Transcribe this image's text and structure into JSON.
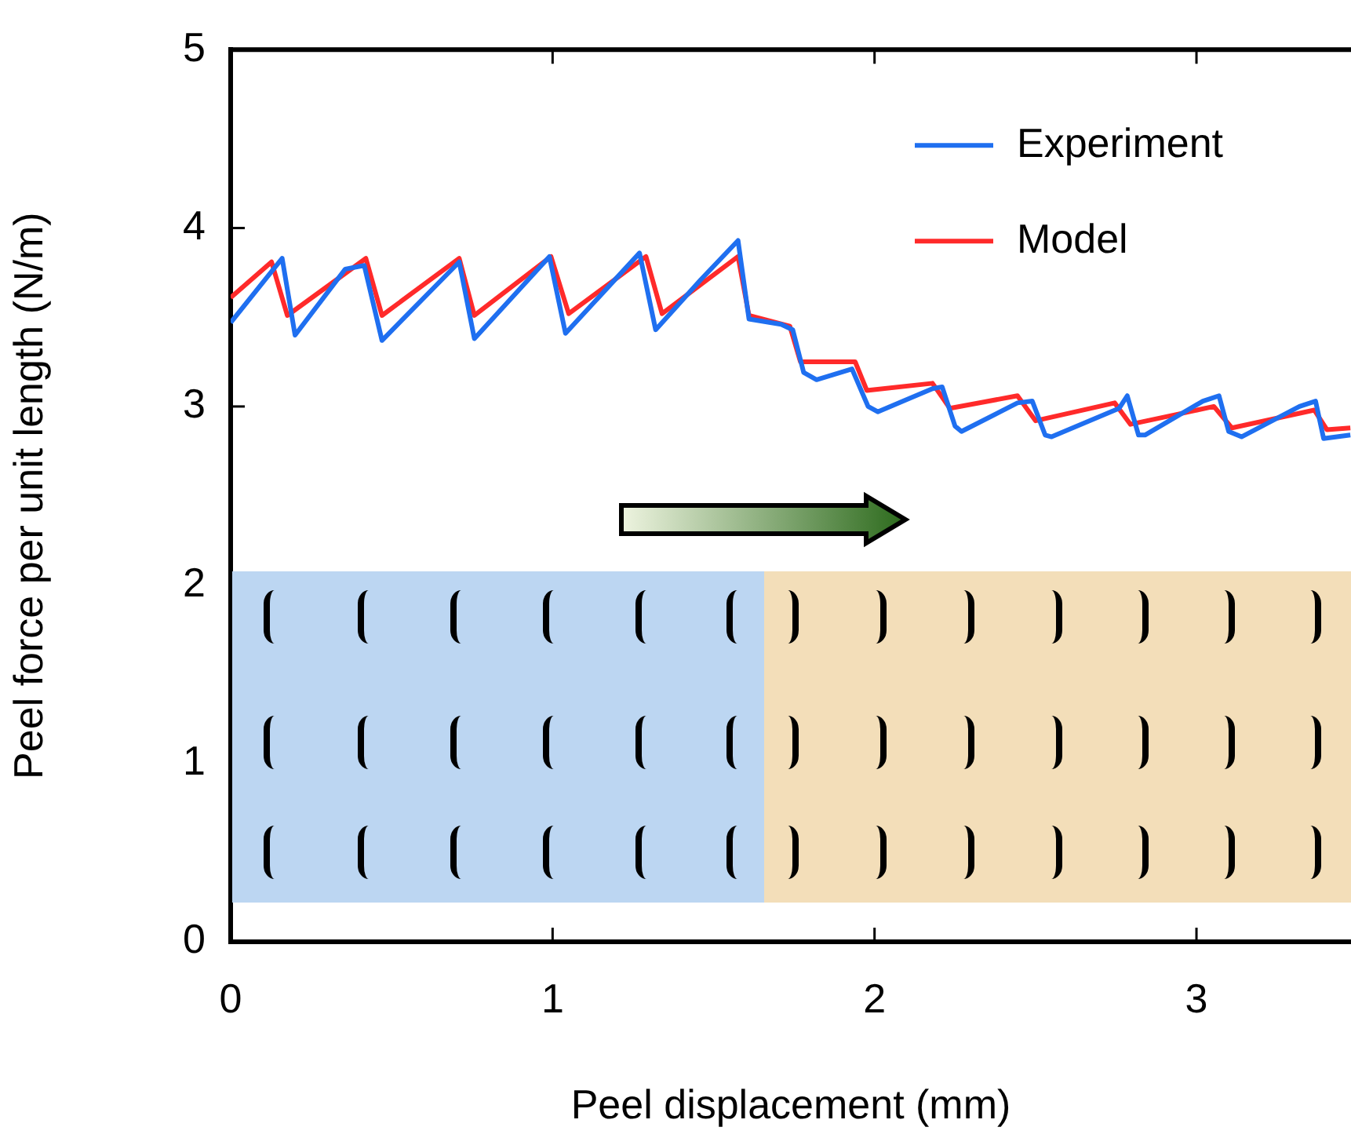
{
  "chart_data": {
    "type": "line",
    "xlabel": "Peel displacement (mm)",
    "ylabel": "Peel force per unit length (N/m)",
    "xlim": [
      0,
      3.48
    ],
    "xticks": [
      0,
      1,
      2,
      3
    ],
    "ylim": [
      0,
      5
    ],
    "yticks": [
      0,
      1,
      2,
      3,
      4,
      5
    ],
    "grid": false,
    "legend": "top right",
    "marker": "none",
    "line_style": "solid",
    "series": [
      {
        "name": "Experiment",
        "color": "#1f6ff0",
        "x": [
          0,
          0.16,
          0.2,
          0.356,
          0.415,
          0.47,
          0.71,
          0.757,
          0.99,
          1.04,
          1.27,
          1.32,
          1.46,
          1.576,
          1.61,
          1.71,
          1.746,
          1.78,
          1.82,
          1.93,
          1.98,
          2.01,
          2.18,
          2.21,
          2.25,
          2.27,
          2.444,
          2.49,
          2.53,
          2.55,
          2.76,
          2.785,
          2.82,
          2.84,
          3.02,
          3.07,
          3.1,
          3.14,
          3.32,
          3.37,
          3.395,
          3.478
        ],
        "values": [
          3.47,
          3.83,
          3.4,
          3.77,
          3.79,
          3.37,
          3.81,
          3.38,
          3.84,
          3.41,
          3.86,
          3.43,
          3.71,
          3.93,
          3.49,
          3.46,
          3.43,
          3.19,
          3.15,
          3.21,
          3.0,
          2.97,
          3.1,
          3.11,
          2.89,
          2.86,
          3.02,
          3.03,
          2.84,
          2.83,
          2.99,
          3.06,
          2.84,
          2.84,
          3.03,
          3.06,
          2.86,
          2.83,
          3.0,
          3.03,
          2.82,
          2.84
        ]
      },
      {
        "name": "Model",
        "color": "#ff2a2a",
        "x": [
          0,
          0.127,
          0.176,
          0.42,
          0.47,
          0.71,
          0.757,
          0.995,
          1.05,
          1.29,
          1.34,
          1.576,
          1.61,
          1.737,
          1.77,
          1.94,
          1.976,
          2.18,
          2.234,
          2.444,
          2.5,
          2.746,
          2.795,
          3.054,
          3.11,
          3.366,
          3.405,
          3.478
        ],
        "values": [
          3.61,
          3.81,
          3.51,
          3.83,
          3.51,
          3.83,
          3.51,
          3.84,
          3.52,
          3.84,
          3.52,
          3.84,
          3.51,
          3.45,
          3.25,
          3.25,
          3.09,
          3.13,
          2.99,
          3.06,
          2.92,
          3.02,
          2.9,
          3.0,
          2.88,
          2.98,
          2.87,
          2.88
        ]
      }
    ]
  }
}
